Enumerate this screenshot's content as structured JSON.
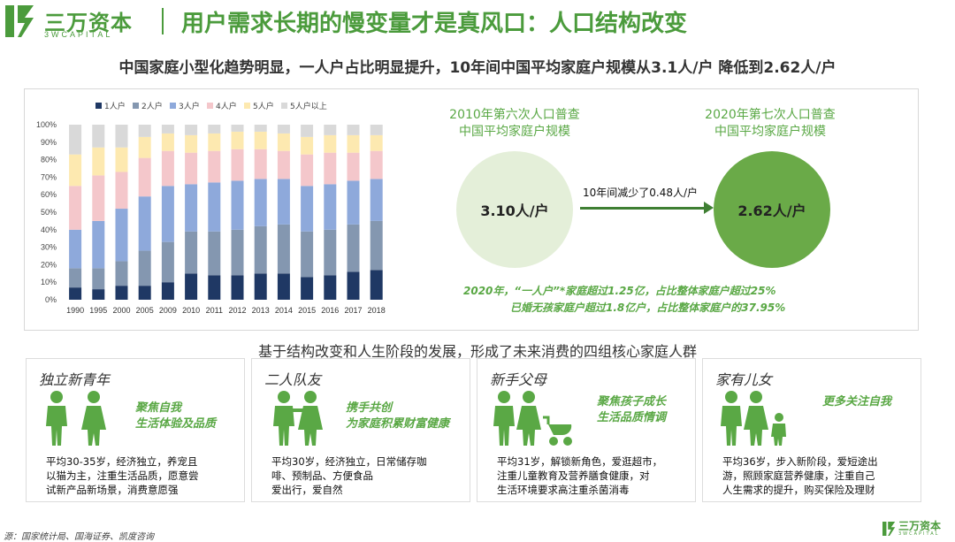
{
  "header": {
    "logo_cn": "三万资本",
    "logo_en": "3WCAPITAL",
    "title": "用户需求长期的慢变量才是真风口：人口结构改变"
  },
  "subtitle": "中国家庭小型化趋势明显，一人户占比明显提升，10年间中国平均家庭户规模从3.1人/户 降低到2.62人/户",
  "colors": {
    "brand_green": "#4b9b3c",
    "accent_green": "#5aa845",
    "series": [
      "#1f3864",
      "#8497b0",
      "#8ea9db",
      "#f4c7cb",
      "#fde9b0",
      "#d9d9d9"
    ]
  },
  "chart_data": {
    "type": "bar",
    "stacked": true,
    "categories": [
      "1990",
      "1995",
      "2000",
      "2005",
      "2009",
      "2010",
      "2011",
      "2012",
      "2013",
      "2014",
      "2015",
      "2016",
      "2017",
      "2018"
    ],
    "series": [
      {
        "name": "1人户",
        "values": [
          7,
          6,
          8,
          8,
          10,
          15,
          14,
          14,
          15,
          15,
          13,
          14,
          16,
          17
        ]
      },
      {
        "name": "2人户",
        "values": [
          11,
          12,
          14,
          20,
          23,
          24,
          25,
          26,
          27,
          28,
          26,
          26,
          27,
          28
        ]
      },
      {
        "name": "3人户",
        "values": [
          22,
          27,
          30,
          31,
          32,
          27,
          28,
          28,
          27,
          26,
          26,
          26,
          25,
          24
        ]
      },
      {
        "name": "4人户",
        "values": [
          25,
          26,
          21,
          22,
          20,
          18,
          18,
          18,
          17,
          16,
          18,
          18,
          16,
          16
        ]
      },
      {
        "name": "5人户",
        "values": [
          18,
          16,
          14,
          12,
          10,
          10,
          10,
          10,
          10,
          10,
          10,
          10,
          10,
          9
        ]
      },
      {
        "name": "5人户以上",
        "values": [
          17,
          13,
          13,
          7,
          5,
          6,
          5,
          4,
          4,
          5,
          7,
          6,
          6,
          6
        ]
      }
    ],
    "y_ticks": [
      "0%",
      "10%",
      "20%",
      "30%",
      "40%",
      "50%",
      "60%",
      "70%",
      "80%",
      "90%",
      "100%"
    ],
    "ylim": [
      0,
      100
    ],
    "grid": false,
    "legend_position": "top"
  },
  "census": {
    "left_label_line1": "2010年第六次人口普查",
    "left_label_line2": "中国平均家庭户规模",
    "left_value": "3.10人/户",
    "right_label_line1": "2020年第七次人口普查",
    "right_label_line2": "中国平均家庭户规模",
    "right_value": "2.62人/户",
    "arrow_label": "10年间减少了0.48人/户",
    "note_line1": "2020年，“一人户”*家庭超过1.25亿，占比整体家庭户超过25%",
    "note_line2": "已婚无孩家庭户超过1.8亿户，占比整体家庭户的37.95%"
  },
  "mid_title": "基于结构改变和人生阶段的发展，形成了未来消费的四组核心家庭人群",
  "cards": [
    {
      "title": "独立新青年",
      "focus_line1": "聚焦自我",
      "focus_line2": "生活体验及品质",
      "icon": "two-people-icon",
      "desc_line1": "平均30-35岁，经济独立，养宠且",
      "desc_line2": "以猫为主，注重生活品质，愿意尝",
      "desc_line3": "试新产品新场景，消费意愿强"
    },
    {
      "title": "二人队友",
      "focus_line1": "携手共创",
      "focus_line2": "为家庭积累财富健康",
      "icon": "couple-icon",
      "desc_line1": "平均30岁，经济独立，日常储存咖",
      "desc_line2": "啡、预制品、方便食品",
      "desc_line3": "爱出行，爱自然"
    },
    {
      "title": "新手父母",
      "focus_line1": "聚焦孩子成长",
      "focus_line2": "生活品质情调",
      "icon": "parents-stroller-icon",
      "desc_line1": "平均31岁，解锁新角色，爱逛超市，",
      "desc_line2": "注重儿童教育及营养膳食健康，对",
      "desc_line3": "生活环境要求高注重杀菌消毒"
    },
    {
      "title": "家有儿女",
      "focus_line1": "更多关注自我",
      "focus_line2": "",
      "icon": "family-with-child-icon",
      "desc_line1": "平均36岁，步入新阶段，爱短途出",
      "desc_line2": "游，照顾家庭营养健康，注重自己",
      "desc_line3": "人生需求的提升，购买保险及理财"
    }
  ],
  "source": "源：国家统计局、国海证券、凯度咨询",
  "footer": {
    "logo_cn": "三万资本",
    "logo_en": "3WCAPITAL"
  }
}
